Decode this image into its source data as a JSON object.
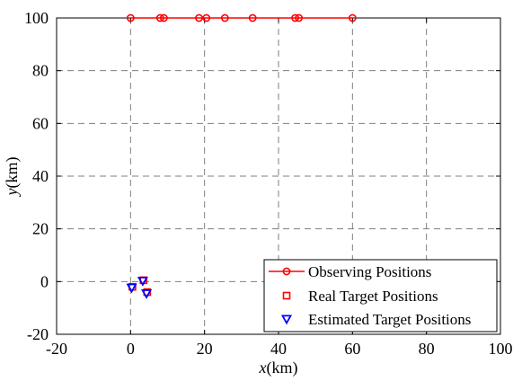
{
  "chart_data": {
    "type": "scatter",
    "title": "",
    "xlabel": {
      "var": "x",
      "unit": "(km)"
    },
    "ylabel": {
      "var": "y",
      "unit": "(km)"
    },
    "xlim": [
      -20,
      100
    ],
    "ylim": [
      -20,
      100
    ],
    "xticks": [
      -20,
      0,
      20,
      40,
      60,
      80,
      100
    ],
    "yticks": [
      -20,
      0,
      20,
      40,
      60,
      80,
      100
    ],
    "grid": true,
    "legend_position": "bottom-right",
    "series": [
      {
        "name": "Observing Positions",
        "style": "line-with-circle-markers",
        "color": "#ff0000",
        "points": [
          [
            0,
            100
          ],
          [
            8,
            100
          ],
          [
            9,
            100
          ],
          [
            18.5,
            100
          ],
          [
            20.5,
            100
          ],
          [
            25.5,
            100
          ],
          [
            33,
            100
          ],
          [
            44.5,
            100
          ],
          [
            45.5,
            100
          ],
          [
            60,
            100
          ]
        ]
      },
      {
        "name": "Real Target Positions",
        "style": "square-markers",
        "color": "#ff0000",
        "points": [
          [
            0.5,
            -2
          ],
          [
            3.5,
            0.5
          ],
          [
            4.5,
            -4
          ]
        ]
      },
      {
        "name": "Estimated Target Positions",
        "style": "triangle-down-markers",
        "color": "#0000ff",
        "points": [
          [
            0.3,
            -2.3
          ],
          [
            3.3,
            0.3
          ],
          [
            4.3,
            -4.5
          ]
        ]
      }
    ]
  }
}
